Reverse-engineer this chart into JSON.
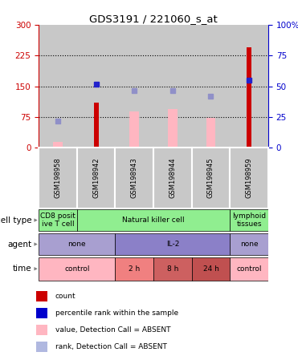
{
  "title": "GDS3191 / 221060_s_at",
  "samples": [
    "GSM198958",
    "GSM198942",
    "GSM198943",
    "GSM198944",
    "GSM198945",
    "GSM198959"
  ],
  "count_values": [
    0,
    110,
    0,
    0,
    0,
    245
  ],
  "pink_bar_values": [
    15,
    0,
    88,
    95,
    72,
    0
  ],
  "blue_square_values": [
    65,
    155,
    140,
    140,
    125,
    165
  ],
  "blue_sq_absent": [
    true,
    false,
    true,
    true,
    true,
    false
  ],
  "ylim_left": [
    0,
    300
  ],
  "ylim_right": [
    0,
    100
  ],
  "yticks_left": [
    0,
    75,
    150,
    225,
    300
  ],
  "yticks_right": [
    0,
    25,
    50,
    75,
    100
  ],
  "hline_values": [
    75,
    150,
    225
  ],
  "cell_type_data": [
    {
      "label": "CD8 posit\nive T cell",
      "span": [
        0,
        1
      ],
      "color": "#90EE90"
    },
    {
      "label": "Natural killer cell",
      "span": [
        1,
        5
      ],
      "color": "#90EE90"
    },
    {
      "label": "lymphoid\ntissues",
      "span": [
        5,
        6
      ],
      "color": "#90EE90"
    }
  ],
  "agent_data": [
    {
      "label": "none",
      "span": [
        0,
        2
      ],
      "color": "#A89FD0"
    },
    {
      "label": "IL-2",
      "span": [
        2,
        5
      ],
      "color": "#8B80C8"
    },
    {
      "label": "none",
      "span": [
        5,
        6
      ],
      "color": "#A89FD0"
    }
  ],
  "time_data": [
    {
      "label": "control",
      "span": [
        0,
        2
      ],
      "color": "#FFB6C1"
    },
    {
      "label": "2 h",
      "span": [
        2,
        3
      ],
      "color": "#F08080"
    },
    {
      "label": "8 h",
      "span": [
        3,
        4
      ],
      "color": "#CD6060"
    },
    {
      "label": "24 h",
      "span": [
        4,
        5
      ],
      "color": "#C05050"
    },
    {
      "label": "control",
      "span": [
        5,
        6
      ],
      "color": "#FFB6C1"
    }
  ],
  "row_labels": [
    "cell type",
    "agent",
    "time"
  ],
  "legend_items": [
    {
      "color": "#CC0000",
      "label": "count"
    },
    {
      "color": "#0000CC",
      "label": "percentile rank within the sample"
    },
    {
      "color": "#FFB6C1",
      "label": "value, Detection Call = ABSENT"
    },
    {
      "color": "#B0B8E0",
      "label": "rank, Detection Call = ABSENT"
    }
  ],
  "bar_bg_color": "#C8C8C8",
  "count_color": "#CC0000",
  "pink_bar_color": "#FFB6C1",
  "blue_sq_color": "#2222CC",
  "blue_sq_absent_color": "#9090C8",
  "left_axis_color": "#CC0000",
  "right_axis_color": "#0000CC"
}
